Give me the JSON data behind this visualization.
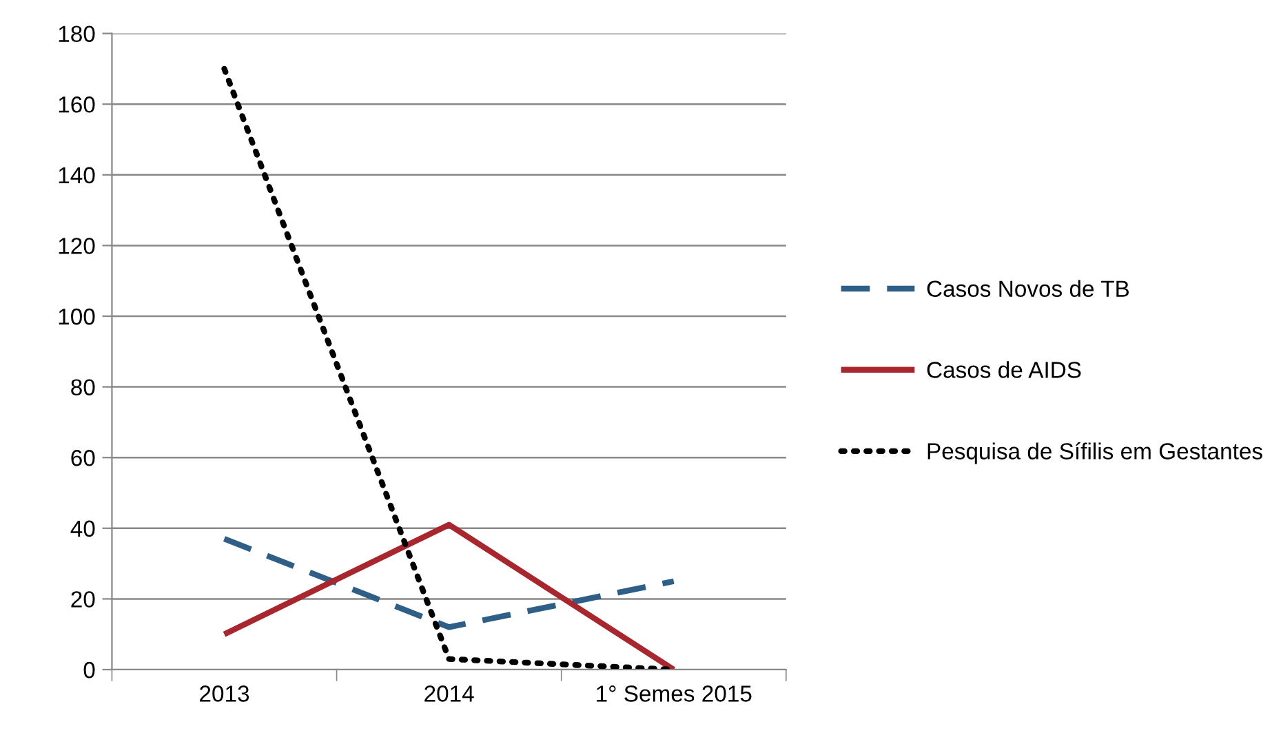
{
  "chart_data": {
    "type": "line",
    "categories": [
      "2013",
      "2014",
      "1° Semes 2015"
    ],
    "series": [
      {
        "name": "Casos Novos de TB",
        "color": "#2f5f86",
        "values": [
          37,
          12,
          25
        ],
        "line_style": "dashed"
      },
      {
        "name": "Casos de AIDS",
        "color": "#a8272f",
        "values": [
          10,
          41,
          0
        ],
        "line_style": "solid"
      },
      {
        "name": "Pesquisa de Sífilis em Gestantes",
        "color": "#000000",
        "values": [
          170,
          3,
          0
        ],
        "line_style": "dotted"
      }
    ],
    "ylim": [
      0,
      180
    ],
    "yticks": [
      0,
      20,
      40,
      60,
      80,
      100,
      120,
      140,
      160,
      180
    ],
    "grid": "y",
    "legend": "right"
  }
}
